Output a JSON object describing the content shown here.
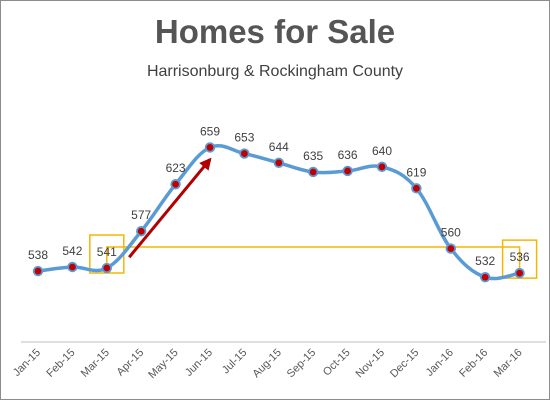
{
  "chart_data": {
    "type": "line",
    "title": "Homes for Sale",
    "subtitle": "Harrisonburg & Rockingham County",
    "categories": [
      "Jan-15",
      "Feb-15",
      "Mar-15",
      "Apr-15",
      "May-15",
      "Jun-15",
      "Jul-15",
      "Aug-15",
      "Sep-15",
      "Oct-15",
      "Nov-15",
      "Dec-15",
      "Jan-16",
      "Feb-16",
      "Mar-16"
    ],
    "series": [
      {
        "values": [
          538,
          542,
          541,
          577,
          623,
          659,
          653,
          644,
          635,
          636,
          640,
          619,
          560,
          532,
          536
        ]
      }
    ],
    "data_labels": [
      "538",
      "542",
      "541",
      "577",
      "623",
      "659",
      "653",
      "644",
      "635",
      "636",
      "640",
      "619",
      "560",
      "532",
      "536"
    ],
    "ylim": [
      450,
      680
    ],
    "grid": false,
    "legend": "none",
    "annotations": {
      "highlight_boxes": [
        "Mar-15",
        "Mar-16"
      ],
      "bracket_connects": [
        "Mar-15",
        "Mar-16"
      ],
      "arrow": {
        "from": "Apr-15",
        "to": "Jun-15",
        "direction": "up"
      }
    },
    "colors": {
      "line": "#5b9bd5",
      "marker_fill": "#c00000",
      "highlight": "#f2b705",
      "arrow": "#b00000",
      "title": "#555555",
      "text": "#404040",
      "axis": "#bfbfbf"
    }
  }
}
